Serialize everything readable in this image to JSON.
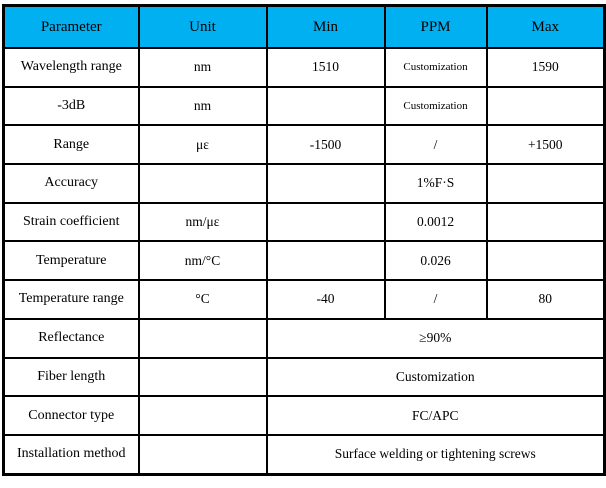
{
  "accent_color": "#00B0F0",
  "table": {
    "headers": [
      "Parameter",
      "Unit",
      "Min",
      "PPM",
      "Max"
    ],
    "rows": [
      {
        "param": "Wavelength range",
        "unit": "nm",
        "min": "1510",
        "ppm": "Customization",
        "max": "1590"
      },
      {
        "param": "-3dB",
        "unit": "nm",
        "min": "",
        "ppm": "Customization",
        "max": ""
      },
      {
        "param": "Range",
        "unit": "με",
        "min": "-1500",
        "ppm": "/",
        "max": "+1500"
      },
      {
        "param": "Accuracy",
        "unit": "",
        "min": "",
        "ppm": "1%F·S",
        "max": ""
      },
      {
        "param": "Strain coefficient",
        "unit": "nm/με",
        "min": "",
        "ppm": "0.0012",
        "max": ""
      },
      {
        "param": "Temperature",
        "unit": "nm/°C",
        "min": "",
        "ppm": "0.026",
        "max": ""
      },
      {
        "param": "Temperature range",
        "unit": "°C",
        "min": "-40",
        "ppm": "/",
        "max": "80"
      },
      {
        "param": "Reflectance",
        "unit": "",
        "merged": "≥90%"
      },
      {
        "param": "Fiber length",
        "unit": "",
        "merged": "Customization"
      },
      {
        "param": "Connector type",
        "unit": "",
        "merged": "FC/APC"
      },
      {
        "param": "Installation method",
        "unit": "",
        "merged": "Surface welding or tightening screws"
      }
    ]
  }
}
